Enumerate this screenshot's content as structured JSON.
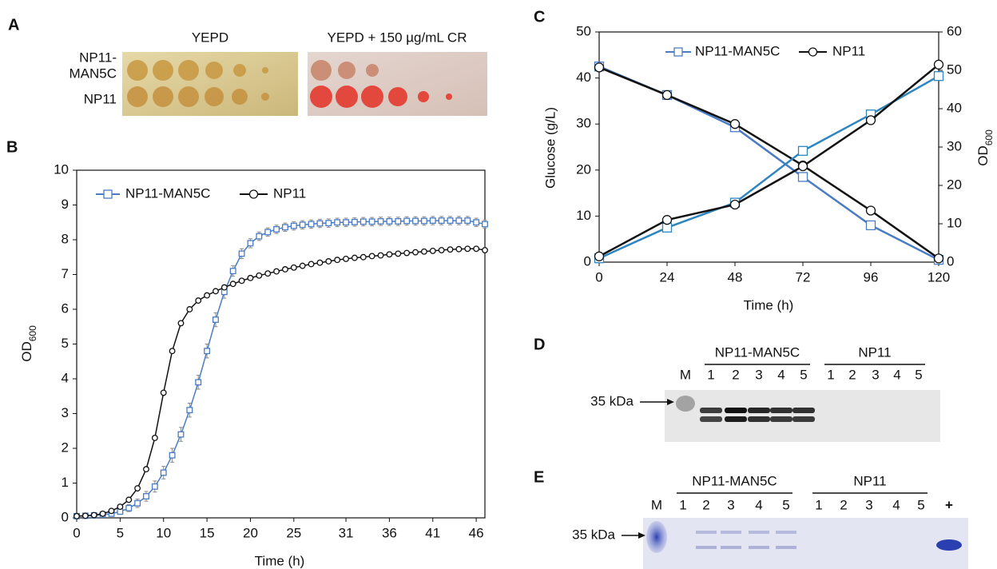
{
  "panels": {
    "A": {
      "label": "A",
      "conditions": [
        "YEPD",
        "YEPD + 150 µg/mL CR"
      ],
      "strain_labels": [
        [
          "NP11-",
          "MAN5C"
        ],
        [
          "NP11"
        ]
      ]
    },
    "D": {
      "label": "D",
      "marker_lane": "M",
      "size_marker": "35 kDa",
      "groups": [
        {
          "name": "NP11-MAN5C",
          "lanes": [
            "1",
            "2",
            "3",
            "4",
            "5"
          ]
        },
        {
          "name": "NP11",
          "lanes": [
            "1",
            "2",
            "3",
            "4",
            "5"
          ]
        }
      ]
    },
    "E": {
      "label": "E",
      "marker_lane": "M",
      "size_marker": "35 kDa",
      "positive_lane": "+",
      "groups": [
        {
          "name": "NP11-MAN5C",
          "lanes": [
            "1",
            "2",
            "3",
            "4",
            "5"
          ]
        },
        {
          "name": "NP11",
          "lanes": [
            "1",
            "2",
            "3",
            "4",
            "5"
          ]
        }
      ]
    }
  },
  "chart_data": [
    {
      "type": "line",
      "panel": "B",
      "xlabel": "Time (h)",
      "ylabel": [
        "OD",
        "600"
      ],
      "x": [
        0,
        1,
        2,
        3,
        4,
        5,
        6,
        7,
        8,
        9,
        10,
        11,
        12,
        13,
        14,
        15,
        16,
        17,
        18,
        19,
        20,
        21,
        22,
        23,
        24,
        25,
        26,
        27,
        28,
        29,
        30,
        31,
        32,
        33,
        34,
        35,
        36,
        37,
        38,
        39,
        40,
        41,
        42,
        43,
        44,
        45,
        46,
        47
      ],
      "xlim": [
        0,
        47
      ],
      "xticks": [
        0,
        5,
        10,
        15,
        20,
        25,
        31,
        36,
        41,
        46
      ],
      "ylim": [
        0,
        10
      ],
      "yticks": [
        0,
        1,
        2,
        3,
        4,
        5,
        6,
        7,
        8,
        9,
        10
      ],
      "grid": false,
      "series": [
        {
          "name": "NP11-MAN5C",
          "color": "#4a7cc4",
          "marker": "square",
          "values": [
            0.05,
            0.06,
            0.07,
            0.09,
            0.12,
            0.18,
            0.28,
            0.42,
            0.62,
            0.9,
            1.3,
            1.8,
            2.4,
            3.1,
            3.9,
            4.8,
            5.7,
            6.5,
            7.1,
            7.6,
            7.9,
            8.1,
            8.22,
            8.3,
            8.36,
            8.4,
            8.43,
            8.45,
            8.47,
            8.48,
            8.5,
            8.5,
            8.51,
            8.52,
            8.52,
            8.53,
            8.53,
            8.53,
            8.54,
            8.54,
            8.54,
            8.55,
            8.55,
            8.55,
            8.55,
            8.55,
            8.5,
            8.45
          ],
          "errors": [
            0.03,
            0.03,
            0.03,
            0.04,
            0.05,
            0.08,
            0.1,
            0.12,
            0.14,
            0.16,
            0.18,
            0.2,
            0.2,
            0.2,
            0.2,
            0.2,
            0.2,
            0.18,
            0.15,
            0.14,
            0.13,
            0.12,
            0.12,
            0.12,
            0.12,
            0.12,
            0.12,
            0.12,
            0.12,
            0.12,
            0.12,
            0.12,
            0.12,
            0.12,
            0.12,
            0.12,
            0.12,
            0.12,
            0.12,
            0.12,
            0.12,
            0.12,
            0.12,
            0.12,
            0.12,
            0.12,
            0.12,
            0.12
          ]
        },
        {
          "name": "NP11",
          "color": "#111111",
          "marker": "circle",
          "values": [
            0.05,
            0.06,
            0.08,
            0.12,
            0.2,
            0.32,
            0.52,
            0.85,
            1.4,
            2.3,
            3.6,
            4.8,
            5.6,
            6.0,
            6.25,
            6.4,
            6.52,
            6.63,
            6.73,
            6.82,
            6.9,
            6.97,
            7.03,
            7.09,
            7.15,
            7.2,
            7.25,
            7.3,
            7.34,
            7.38,
            7.42,
            7.45,
            7.48,
            7.5,
            7.53,
            7.55,
            7.58,
            7.6,
            7.62,
            7.64,
            7.66,
            7.68,
            7.7,
            7.72,
            7.73,
            7.74,
            7.74,
            7.7
          ]
        }
      ]
    },
    {
      "type": "line",
      "panel": "C",
      "xlabel": "Time (h)",
      "ylabel": "Glucose (g/L)",
      "y2label": [
        "OD",
        "600"
      ],
      "x": [
        0,
        24,
        48,
        72,
        96,
        120
      ],
      "xlim": [
        0,
        120
      ],
      "xticks": [
        0,
        24,
        48,
        72,
        96,
        120
      ],
      "ylim": [
        0,
        50
      ],
      "yticks": [
        0,
        10,
        20,
        30,
        40,
        50
      ],
      "y2lim": [
        0,
        60
      ],
      "y2ticks": [
        0,
        10,
        20,
        30,
        40,
        50,
        60
      ],
      "grid": false,
      "series": [
        {
          "name": "NP11-MAN5C",
          "color": "#4a7cc4",
          "marker": "square",
          "values": [
            42.5,
            36.3,
            29.3,
            18.5,
            8,
            0.5
          ]
        },
        {
          "name": "NP11",
          "color": "#111111",
          "marker": "circle",
          "values": [
            42.3,
            36.3,
            30,
            21,
            11.2,
            0.8
          ]
        },
        {
          "color": "#2e86c1",
          "marker": "square",
          "axis": "y2",
          "values": [
            1,
            9,
            15.5,
            29,
            38.5,
            48.5
          ]
        },
        {
          "color": "#111111",
          "marker": "circle",
          "axis": "y2",
          "values": [
            1.5,
            11,
            15,
            25,
            37,
            51.5
          ]
        }
      ]
    }
  ]
}
